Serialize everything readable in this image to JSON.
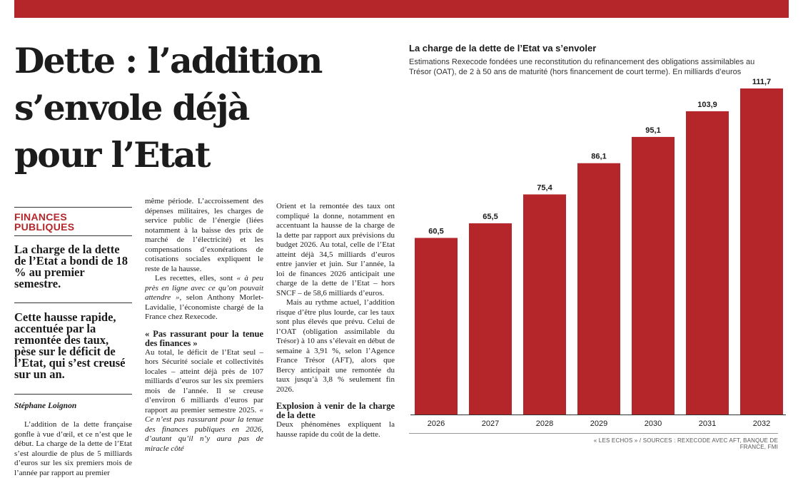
{
  "article": {
    "headline_lines": [
      "Dette : l’addition",
      "s’envole déjà",
      "pour l’Etat"
    ],
    "section": [
      "FINANCES",
      "PUBLIQUES"
    ],
    "lead1": "La charge de la dette de l’Etat a bondi de 18 % au premier semestre.",
    "lead2": "Cette hausse rapide, accentuée par la remontée des taux, pèse sur le déficit de l’Etat, qui s’est creusé sur un an.",
    "byline": "Stéphane Loignon",
    "col1_body": "L’addition de la dette française gonfle à vue d’œil, et ce n’est que le début. La charge de la dette de l’Etat s’est alourdie de plus de 5 milliards d’euros sur les six premiers mois de l’année par rapport au premier",
    "col2_p1": "même période. L’accroissement des dépenses militaires, les charges de service public de l’énergie (liées notamment à la baisse des prix de marché de l’électricité) et les compensations d’exonérations de cotisations sociales expliquent le reste de la hausse.",
    "col2_p2_a": "Les recettes, elles, sont ",
    "col2_p2_quote": "« à peu près en ligne avec ce qu’on pouvait attendre »",
    "col2_p2_b": ", selon Anthony Morlet-Lavidalie, l’économiste chargé de la France chez Rexecode.",
    "subhead1": "« Pas rassurant pour la tenue des finances »",
    "col2_p3_a": "Au total, le déficit de l’Etat seul – hors Sécurité sociale et collectivités locales – atteint déjà près de 107 milliards d’euros sur les six premiers mois de l’année. Il se creuse d’environ 6 milliards d’euros par rapport au premier semestre 2025. ",
    "col2_p3_quote": "« Ce n’est pas rassurant pour la tenue des finances publiques en 2026, d’autant qu’il n’y aura pas de miracle côté",
    "col3_p1": "Orient et la remontée des taux ont compliqué la donne, notamment en accentuant la hausse de la charge de la dette par rapport aux prévisions du budget 2026. Au total, celle de l’Etat atteint déjà 34,5 milliards d’euros entre janvier et juin. Sur l’année, la loi de finances 2026 anticipait une charge de la dette de l’Etat – hors SNCF – de 58,6 milliards d’euros.",
    "col3_p2": "Mais au rythme actuel, l’addition risque d’être plus lourde, car les taux sont plus élevés que prévu. Celui de l’OAT (obligation assimilable du Trésor) à 10 ans s’élevait en début de semaine à 3,91 %, selon l’Agence France Trésor (AFT), alors que Bercy anticipait une remontée du taux jusqu’à 3,8 % seulement fin 2026.",
    "subhead2": "Explosion à venir de la charge de la dette",
    "col3_p3": "Deux phénomènes expliquent la hausse rapide du coût de la dette."
  },
  "chart_data": {
    "type": "bar",
    "title": "La charge de la dette de l’Etat va s’envoler",
    "subtitle": "Estimations Rexecode fondées une reconstitution du refinancement des obligations assimilables au Trésor (OAT), de 2 à 50 ans de maturité (hors financement de court terme). En milliards d’euros",
    "categories": [
      "2026",
      "2027",
      "2028",
      "2029",
      "2030",
      "2031",
      "2032"
    ],
    "values": [
      60.5,
      65.5,
      75.4,
      86.1,
      95.1,
      103.9,
      111.7
    ],
    "value_labels": [
      "60,5",
      "65,5",
      "75,4",
      "86,1",
      "95,1",
      "103,9",
      "111,7"
    ],
    "ylim": [
      0,
      111.7
    ],
    "xlabel": "",
    "ylabel": "",
    "grid": false,
    "bar_color": "#b5262a",
    "source": "« LES ECHOS » / SOURCES : REXECODE AVEC AFT, BANQUE DE FRANCE, FMI"
  },
  "colors": {
    "accent": "#b5262a",
    "text": "#1a1a1a"
  }
}
